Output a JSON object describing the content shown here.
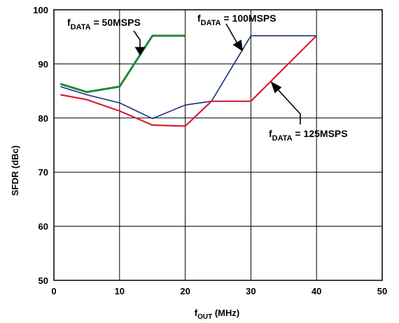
{
  "chart_data": {
    "type": "line",
    "xlabel": {
      "main": "f",
      "sub": "OUT",
      "rest": " (MHz)"
    },
    "ylabel": "SFDR (dBc)",
    "xlim": [
      0,
      50
    ],
    "ylim": [
      50,
      100
    ],
    "xticks": [
      0,
      10,
      20,
      30,
      40,
      50
    ],
    "yticks": [
      50,
      60,
      70,
      80,
      90,
      100
    ],
    "grid": true,
    "series": [
      {
        "name": "f_DATA = 50MSPS",
        "color": "#1e8a3c",
        "x": [
          1,
          5,
          10,
          15,
          20
        ],
        "y": [
          86.3,
          84.8,
          85.8,
          95.2,
          95.2
        ]
      },
      {
        "name": "f_DATA = 100MSPS",
        "color": "#1b2f7a",
        "x": [
          1,
          5,
          10,
          15,
          20,
          24,
          30,
          40
        ],
        "y": [
          85.8,
          84.3,
          82.8,
          79.9,
          82.4,
          83.1,
          95.2,
          95.2
        ]
      },
      {
        "name": "f_DATA = 125MSPS",
        "color": "#d81f3a",
        "x": [
          1,
          5,
          10,
          15,
          20,
          24,
          30,
          40
        ],
        "y": [
          84.3,
          83.4,
          81.3,
          78.7,
          78.5,
          83.1,
          83.1,
          95.2
        ]
      }
    ],
    "annotations": [
      {
        "main": "f",
        "sub": "DATA",
        "rest": " = 50MSPS"
      },
      {
        "main": "f",
        "sub": "DATA",
        "rest": " = 100MSPS"
      },
      {
        "main": "f",
        "sub": "DATA",
        "rest": " = 125MSPS"
      }
    ]
  }
}
